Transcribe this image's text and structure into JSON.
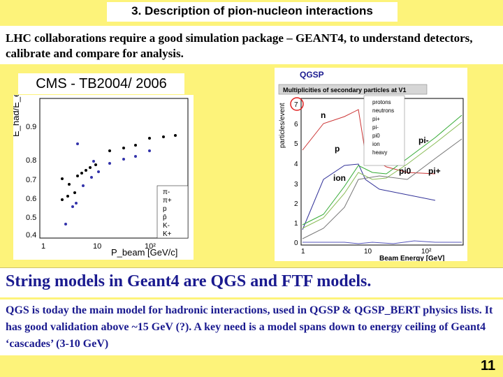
{
  "slide": {
    "title": "3. Description of pion-nucleon interactions",
    "intro": "LHC collaborations require a good simulation package – GEANT4, to understand detectors, calibrate and compare for analysis.",
    "cms_label": "CMS - TB2004/ 2006",
    "section_title": "String models in Geant4 are QGS and FTF models.",
    "body": "QGS is today the main model for hadronic interactions, used in QGSP & QGSP_BERT physics lists. It has good validation above ~15 GeV (?). A key need is a model spans down to energy ceiling of Geant4 ‘cascades’ (3-10 GeV)",
    "page_number": "11"
  },
  "left_plot": {
    "ylabel": "E_had/E_el",
    "xlabel": "P_beam [GeV/c]",
    "yticks": [
      "0.9",
      "0.8",
      "0.7",
      "0.6",
      "0.5",
      "0.4"
    ],
    "xticks": [
      "1",
      "10",
      "10²"
    ],
    "legend": [
      "π-",
      "π+",
      "p",
      "p̄",
      "K-",
      "K+"
    ]
  },
  "right_plot": {
    "header": "QGSP",
    "title": "Multiplicities of secondary particles at V1",
    "ylabel": "particles/event",
    "xlabel": "Beam Energy [GeV]",
    "yticks": [
      "7",
      "6",
      "5",
      "4",
      "3",
      "2",
      "1",
      "0"
    ],
    "xticks": [
      "1",
      "10",
      "10²"
    ],
    "legend": [
      "protons",
      "neutrons",
      "pi+",
      "pi-",
      "pi0",
      "ion",
      "heavy"
    ],
    "labels": [
      "n",
      "p",
      "ion",
      "pi-",
      "pi0",
      "pi+"
    ]
  },
  "colors": {
    "background": "#fdf37a",
    "accent": "#1a1a8f",
    "highlight": "#e02020"
  }
}
